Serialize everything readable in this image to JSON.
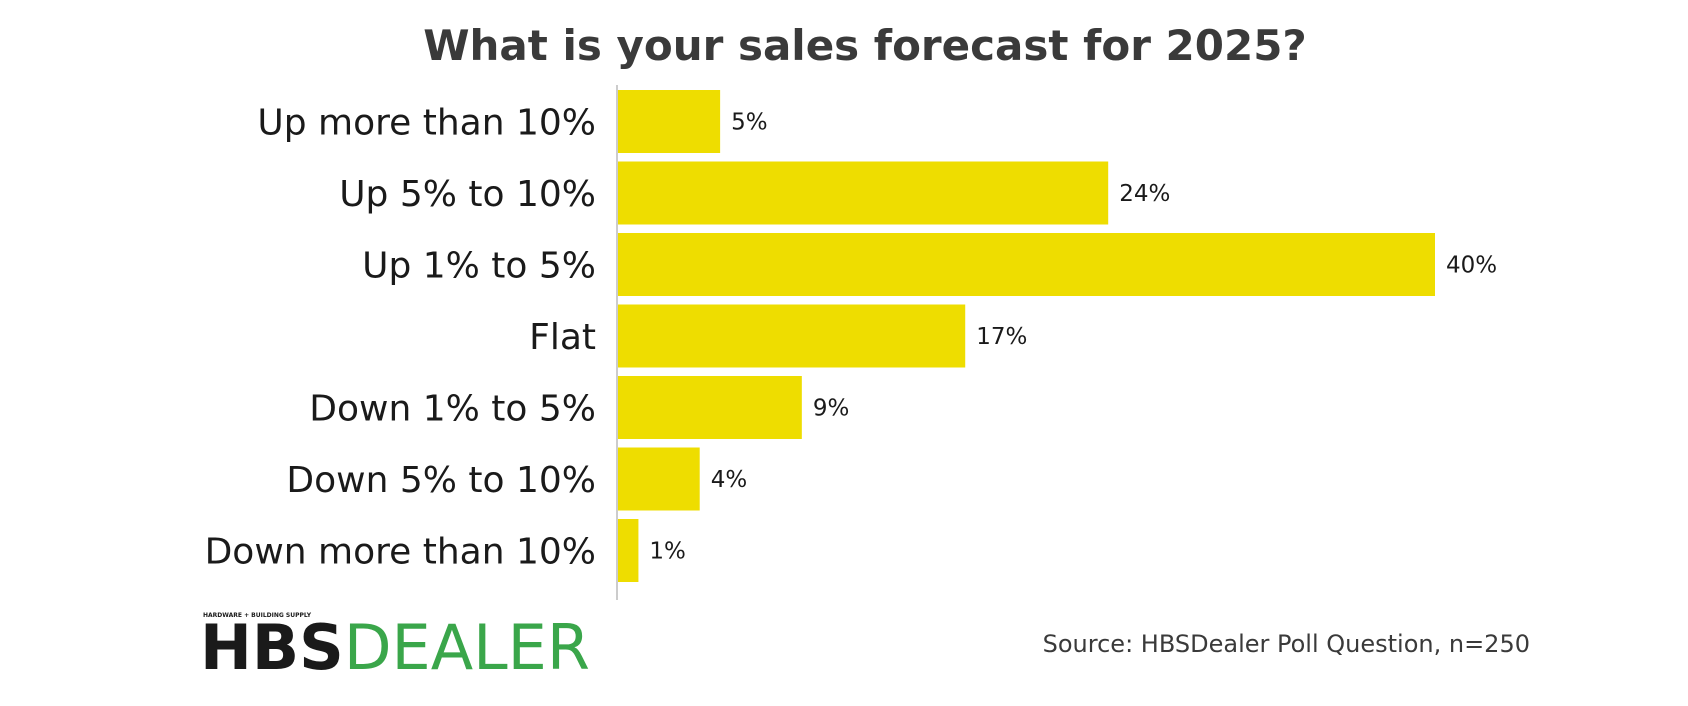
{
  "chart_data": {
    "type": "bar",
    "orientation": "horizontal",
    "title": "What is your sales forecast for 2025?",
    "categories": [
      "Up more than 10%",
      "Up 5% to 10%",
      "Up 1% to 5%",
      "Flat",
      "Down 1% to 5%",
      "Down 5% to 10%",
      "Down more than 10%"
    ],
    "values": [
      5,
      24,
      40,
      17,
      9,
      4,
      1
    ],
    "value_labels": [
      "5%",
      "24%",
      "40%",
      "17%",
      "9%",
      "4%",
      "1%"
    ],
    "xlim": [
      0,
      40
    ],
    "grid": false,
    "bar_color": "#EEDD00",
    "axis_color": "#cccccc"
  },
  "source": "Source: HBSDealer Poll Question, n=250",
  "logo": {
    "tagline": "HARDWARE + BUILDING SUPPLY",
    "brand_bold": "HBS",
    "brand_light": "DEALER",
    "dealer_color": "#3aa64a"
  }
}
